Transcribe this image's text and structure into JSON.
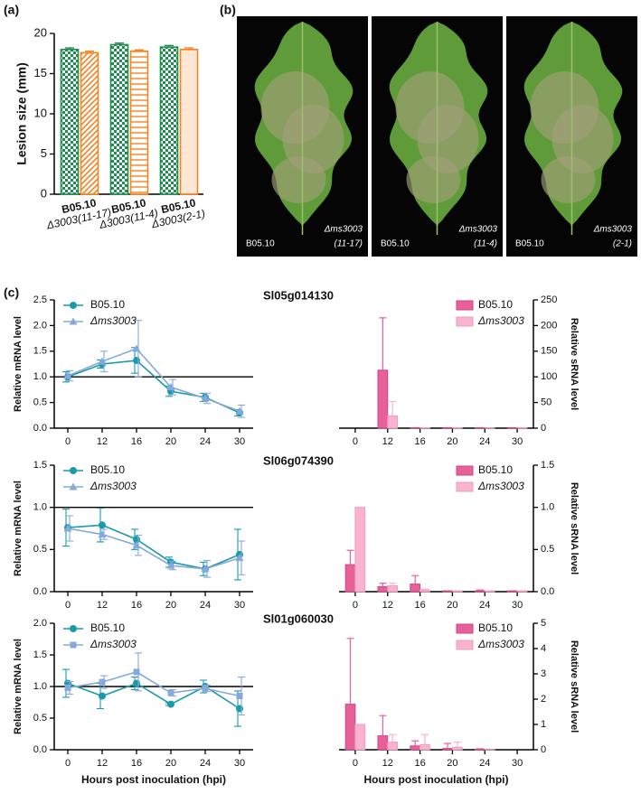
{
  "panel_labels": [
    "(a)",
    "(b)",
    "(c)"
  ],
  "photo_panel": {
    "photos": [
      {
        "left": "B05.10",
        "right": "Δms3003",
        "right_sub": "(11-17)"
      },
      {
        "left": "B05.10",
        "right": "Δms3003",
        "right_sub": "(11-4)"
      },
      {
        "left": "B05.10",
        "right": "Δms3003",
        "right_sub": "(2-1)"
      }
    ]
  },
  "chart_data": [
    {
      "type": "bar",
      "y_label": "Lesion size (mm)",
      "categories": [
        "B05.10",
        "Δ3003(11-17)",
        "B05.10",
        "Δ3003(11-4)",
        "B05.10",
        "Δ3003(2-1)"
      ],
      "values": [
        18.0,
        17.6,
        18.6,
        17.8,
        18.3,
        18.0
      ],
      "errors": [
        0.2,
        0.2,
        0.2,
        0.15,
        0.2,
        0.2
      ],
      "colors": [
        "#1e8c4e",
        "#f58220",
        "#1e8c4e",
        "#f58220",
        "#1e8c4e",
        "#f58220"
      ],
      "patterns": [
        "checker",
        "diagonal",
        "checker",
        "horizontal",
        "checker",
        "none"
      ],
      "ylim": [
        0,
        20
      ],
      "yticks": [
        0,
        5,
        10,
        15,
        20
      ]
    },
    {
      "type": "line",
      "title": "Sl05g014130",
      "y_label": "Relative mRNA level",
      "categories": [
        "0",
        "12",
        "16",
        "20",
        "24",
        "30"
      ],
      "series": [
        {
          "name": "B05.10",
          "color": "#1a9bab",
          "marker": "circle",
          "values": [
            1.0,
            1.25,
            1.32,
            0.72,
            0.6,
            0.3
          ],
          "errors": [
            0.1,
            0.08,
            0.25,
            0.1,
            0.08,
            0.06
          ]
        },
        {
          "name": "Δms3003",
          "color": "#86a9dc",
          "marker": "triangle",
          "values": [
            1.02,
            1.3,
            1.55,
            0.8,
            0.58,
            0.33
          ],
          "errors": [
            0.1,
            0.2,
            0.55,
            0.15,
            0.1,
            0.12
          ]
        }
      ],
      "ylim": [
        0,
        2.5
      ],
      "yticks": [
        {
          "value": 0,
          "label": "0.0"
        },
        {
          "value": 0.5,
          "label": "0.5"
        },
        {
          "value": 1,
          "label": "1.0"
        },
        {
          "value": 1.5,
          "label": "1.5"
        },
        {
          "value": 2,
          "label": "2.0"
        },
        {
          "value": 2.5,
          "label": "2.5"
        }
      ],
      "reference_line": 1
    },
    {
      "type": "bar",
      "y_label": "Relative sRNA level",
      "yaxis_position": "right",
      "categories": [
        "0",
        "12",
        "16",
        "20",
        "24",
        "30"
      ],
      "series": [
        {
          "name": "B05.10",
          "color": "#e8609a",
          "values": [
            0,
            113,
            1,
            1,
            1,
            1
          ],
          "errors": [
            0,
            102,
            0,
            0,
            0,
            0
          ]
        },
        {
          "name": "Δms3003",
          "color": "#f7b3d0",
          "values": [
            0,
            24,
            1,
            1,
            0.5,
            1
          ],
          "errors": [
            0,
            28,
            0,
            0,
            0,
            0
          ]
        }
      ],
      "ylim": [
        0,
        250
      ],
      "yticks": [
        0,
        50,
        100,
        150,
        200,
        250
      ]
    },
    {
      "type": "line",
      "title": "Sl06g074390",
      "y_label": "Relative mRNA level",
      "categories": [
        "0",
        "12",
        "16",
        "20",
        "24",
        "30"
      ],
      "series": [
        {
          "name": "B05.10",
          "color": "#1a9bab",
          "marker": "circle",
          "values": [
            0.76,
            0.79,
            0.62,
            0.35,
            0.27,
            0.44
          ],
          "errors": [
            0.22,
            0.2,
            0.12,
            0.06,
            0.08,
            0.3
          ]
        },
        {
          "name": "Δms3003",
          "color": "#86a9dc",
          "marker": "triangle",
          "values": [
            0.75,
            0.68,
            0.55,
            0.31,
            0.27,
            0.4
          ],
          "errors": [
            0.15,
            0.06,
            0.12,
            0.05,
            0.1,
            0.2
          ]
        }
      ],
      "ylim": [
        0,
        1.5
      ],
      "yticks": [
        {
          "value": 0,
          "label": "0.0"
        },
        {
          "value": 0.5,
          "label": "0.5"
        },
        {
          "value": 1,
          "label": "1.0"
        },
        {
          "value": 1.5,
          "label": "1.5"
        }
      ],
      "reference_line": 1
    },
    {
      "type": "bar",
      "y_label": "Relative sRNA level",
      "yaxis_position": "right",
      "categories": [
        "0",
        "12",
        "16",
        "20",
        "24",
        "30"
      ],
      "series": [
        {
          "name": "B05.10",
          "color": "#e8609a",
          "values": [
            0.32,
            0.06,
            0.09,
            0.01,
            0.01,
            0.01
          ],
          "errors": [
            0.17,
            0.04,
            0.1,
            0,
            0.01,
            0
          ]
        },
        {
          "name": "Δms3003",
          "color": "#f7b3d0",
          "values": [
            1.0,
            0.07,
            0.02,
            0.01,
            0.01,
            0.01
          ],
          "errors": [
            0,
            0.03,
            0.01,
            0,
            0,
            0
          ]
        }
      ],
      "ylim": [
        0,
        1.5
      ],
      "yticks": [
        {
          "value": 0,
          "label": "0.0"
        },
        {
          "value": 0.5,
          "label": "0.5"
        },
        {
          "value": 1,
          "label": "1.0"
        },
        {
          "value": 1.5,
          "label": "1.5"
        }
      ]
    },
    {
      "type": "line",
      "title": "Sl01g060030",
      "y_label": "Relative mRNA level",
      "x_label": "Hours post inoculation (hpi)",
      "categories": [
        "0",
        "12",
        "16",
        "20",
        "24",
        "30"
      ],
      "series": [
        {
          "name": "B05.10",
          "color": "#1a9bab",
          "marker": "circle",
          "values": [
            1.05,
            0.85,
            1.05,
            0.72,
            1.0,
            0.65
          ],
          "errors": [
            0.22,
            0.2,
            0.1,
            0.02,
            0.1,
            0.28
          ]
        },
        {
          "name": "Δms3003",
          "color": "#86a9dc",
          "marker": "square",
          "values": [
            0.98,
            1.07,
            1.23,
            0.9,
            0.97,
            0.85
          ],
          "errors": [
            0.1,
            0.1,
            0.3,
            0.05,
            0.05,
            0.3
          ]
        }
      ],
      "ylim": [
        0,
        2
      ],
      "yticks": [
        {
          "value": 0,
          "label": "0.0"
        },
        {
          "value": 0.5,
          "label": "0.5"
        },
        {
          "value": 1,
          "label": "1.0"
        },
        {
          "value": 1.5,
          "label": "1.5"
        },
        {
          "value": 2,
          "label": "2.0"
        }
      ],
      "reference_line": 1
    },
    {
      "type": "bar",
      "y_label": "Relative sRNA level",
      "yaxis_position": "right",
      "x_label": "Hours post inoculation (hpi)",
      "categories": [
        "0",
        "12",
        "16",
        "20",
        "24",
        "30"
      ],
      "series": [
        {
          "name": "B05.10",
          "color": "#e8609a",
          "values": [
            1.8,
            0.55,
            0.15,
            0.05,
            0.02,
            0
          ],
          "errors": [
            2.6,
            0.8,
            0.2,
            0.2,
            0.02,
            0
          ]
        },
        {
          "name": "Δms3003",
          "color": "#f7b3d0",
          "values": [
            1.0,
            0.3,
            0.2,
            0.1,
            0.01,
            0
          ],
          "errors": [
            0,
            0.3,
            0.4,
            0.2,
            0,
            0
          ]
        }
      ],
      "ylim": [
        0,
        5
      ],
      "yticks": [
        0,
        1,
        2,
        3,
        4,
        5
      ]
    }
  ]
}
